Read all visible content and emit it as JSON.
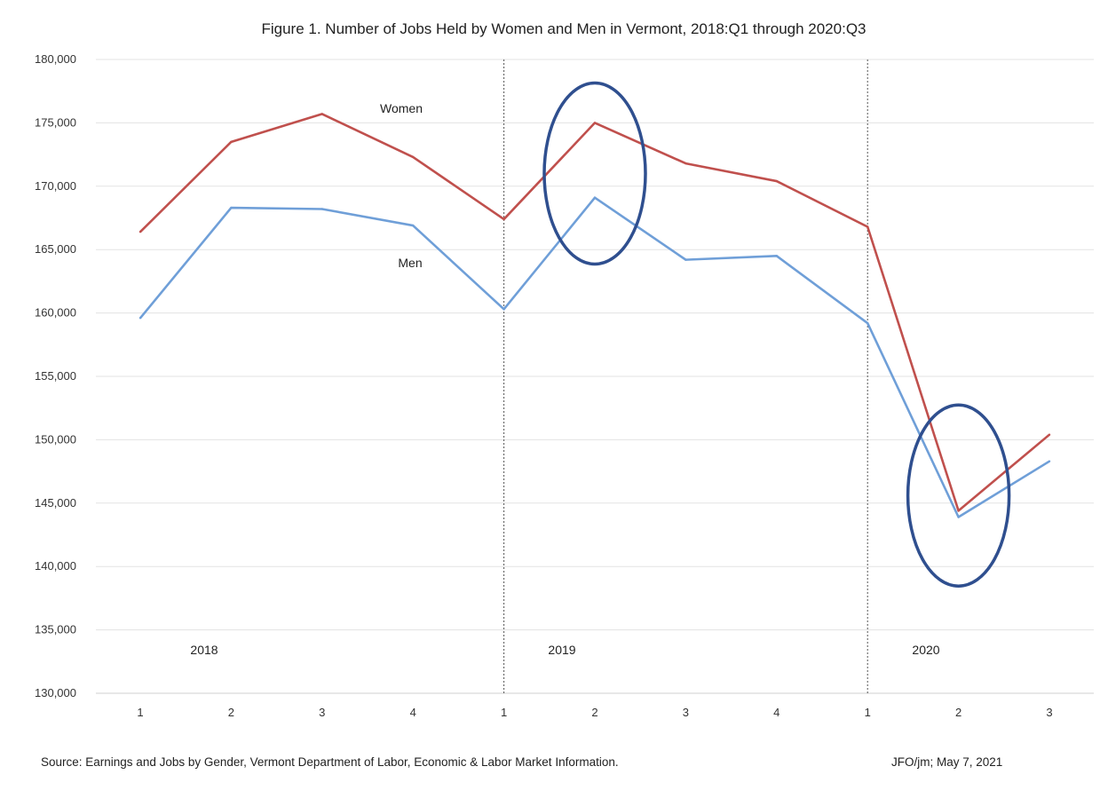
{
  "chart_data": {
    "type": "line",
    "title": "Figure 1. Number of Jobs Held by Women and Men in Vermont, 2018:Q1 through 2020:Q3",
    "x_tick_labels": [
      "1",
      "2",
      "3",
      "4",
      "1",
      "2",
      "3",
      "4",
      "1",
      "2",
      "3"
    ],
    "year_labels": [
      "2018",
      "2019",
      "2020"
    ],
    "y_tick_labels": [
      "130,000",
      "135,000",
      "140,000",
      "145,000",
      "150,000",
      "155,000",
      "160,000",
      "165,000",
      "170,000",
      "175,000",
      "180,000"
    ],
    "ylim": [
      130000,
      180000
    ],
    "y_step": 5000,
    "grid": "horizontal",
    "series": [
      {
        "name": "Women",
        "color": "#C0504D",
        "values": [
          166400,
          173500,
          175700,
          172300,
          167400,
          175000,
          171800,
          170400,
          166800,
          144400,
          150400
        ]
      },
      {
        "name": "Men",
        "color": "#6F9FD8",
        "values": [
          159600,
          168300,
          168200,
          166900,
          160300,
          169100,
          164200,
          164500,
          159200,
          143900,
          148300
        ]
      }
    ],
    "year_dividers_after_quarter_index": [
      3,
      7
    ],
    "highlight_circles": [
      {
        "label": "2019:Q2 peak",
        "at_index": 5,
        "y_center": 171000,
        "color": "#2F4F8F"
      },
      {
        "label": "2020:Q2 trough",
        "at_index": 9,
        "y_center": 145600,
        "color": "#2F4F8F"
      }
    ]
  },
  "footer": {
    "source": "Source: Earnings and Jobs by Gender, Vermont Department of Labor,  Economic & Labor Market Information.",
    "credit": "JFO/jm; May 7, 2021"
  }
}
